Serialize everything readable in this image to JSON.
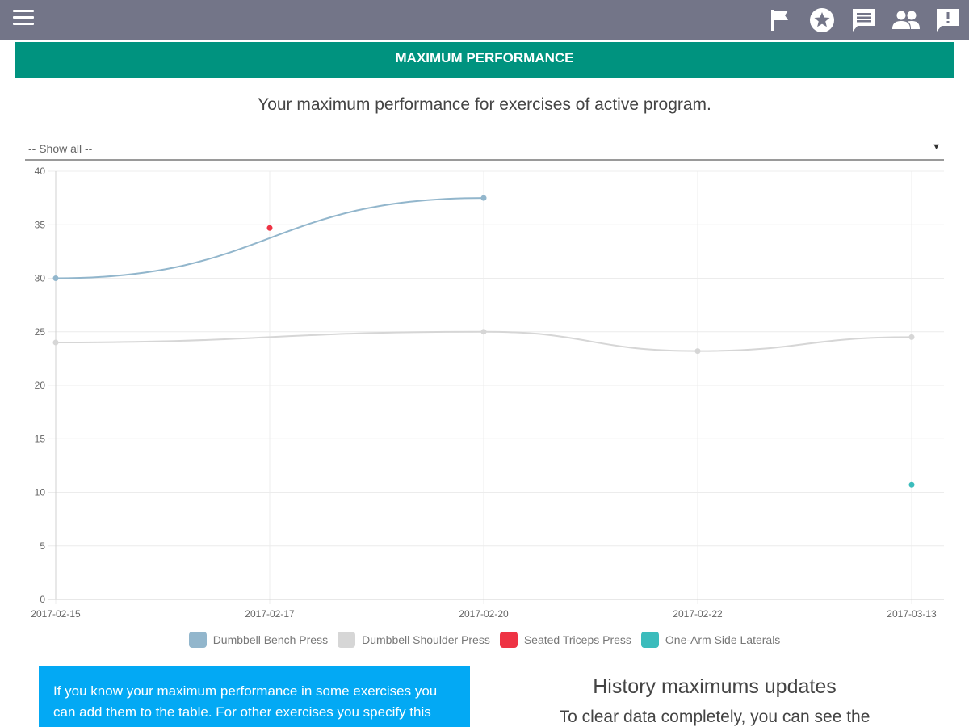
{
  "header": {
    "menu_icon": "hamburger-menu-icon",
    "icons": [
      "flag-icon",
      "star-circle-icon",
      "comment-list-icon",
      "people-icon",
      "feedback-icon"
    ]
  },
  "banner": {
    "title": "MAXIMUM PERFORMANCE"
  },
  "subtitle": "Your maximum performance for exercises of active program.",
  "filter": {
    "selected": "-- Show all --"
  },
  "chart_data": {
    "type": "line",
    "x": [
      "2017-02-15",
      "2017-02-17",
      "2017-02-20",
      "2017-02-22",
      "2017-03-13"
    ],
    "ylim": [
      0,
      40
    ],
    "yticks": [
      0,
      5,
      10,
      15,
      20,
      25,
      30,
      35,
      40
    ],
    "grid": true,
    "legend_position": "bottom",
    "series": [
      {
        "name": "Dumbbell Bench Press",
        "color": "#92b6cc",
        "values": [
          30,
          null,
          37.5,
          null,
          null
        ]
      },
      {
        "name": "Dumbbell Shoulder Press",
        "color": "#d6d6d6",
        "values": [
          24,
          null,
          25,
          23.2,
          24.5
        ]
      },
      {
        "name": "Seated Triceps Press",
        "color": "#ee3344",
        "values": [
          null,
          34.7,
          null,
          null,
          null
        ]
      },
      {
        "name": "One-Arm Side Laterals",
        "color": "#3bbcbc",
        "values": [
          null,
          null,
          null,
          null,
          10.7
        ]
      }
    ]
  },
  "info_box": {
    "text": "If you know your maximum performance in some exercises you can add them to the table. For other exercises you specify this data during the execution of training."
  },
  "history": {
    "title": "History maximums updates",
    "subtitle": "To clear data completely, you can see the"
  }
}
